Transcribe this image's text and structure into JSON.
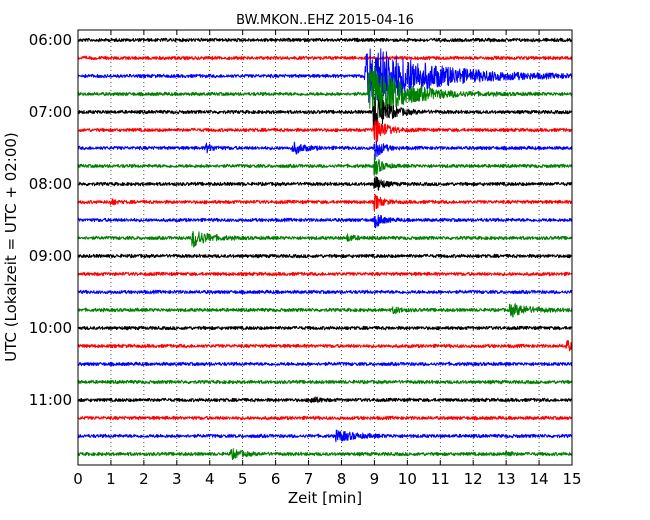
{
  "chart_data": {
    "type": "line",
    "title": "BW.MKON..EHZ 2015-04-16",
    "xlabel": "Zeit  [min]",
    "ylabel": "UTC (Lokalzeit = UTC + 02:00)",
    "xlim": [
      0,
      15
    ],
    "x_ticks": [
      "0",
      "1",
      "2",
      "3",
      "4",
      "5",
      "6",
      "7",
      "8",
      "9",
      "10",
      "11",
      "12",
      "13",
      "14",
      "15"
    ],
    "y_tick_labels": [
      "06:00",
      "07:00",
      "08:00",
      "09:00",
      "10:00",
      "11:00"
    ],
    "grid": "vertical dotted",
    "trace_colors": [
      "#000000",
      "#ff0000",
      "#0000ff",
      "#008000"
    ],
    "traces": [
      {
        "start": "06:00",
        "color": "#000000",
        "events": []
      },
      {
        "start": "06:15",
        "color": "#ff0000",
        "events": []
      },
      {
        "start": "06:30",
        "color": "#0000ff",
        "events": [
          {
            "t": 9.0,
            "amp": 30,
            "decay": 1.7,
            "onset": 8.7
          }
        ]
      },
      {
        "start": "06:45",
        "color": "#008000",
        "events": [
          {
            "t": 9.0,
            "amp": 28,
            "decay": 0.9,
            "onset": 8.8
          }
        ]
      },
      {
        "start": "07:00",
        "color": "#000000",
        "events": [
          {
            "t": 9.0,
            "amp": 20,
            "decay": 0.4,
            "onset": 8.95
          }
        ]
      },
      {
        "start": "07:15",
        "color": "#ff0000",
        "events": [
          {
            "t": 9.0,
            "amp": 14,
            "decay": 0.3,
            "onset": 8.95
          }
        ]
      },
      {
        "start": "07:30",
        "color": "#0000ff",
        "events": [
          {
            "t": 9.0,
            "amp": 12,
            "decay": 0.2,
            "onset": 8.98
          },
          {
            "t": 3.9,
            "amp": 4,
            "decay": 0.2,
            "onset": 3.85
          },
          {
            "t": 6.6,
            "amp": 5,
            "decay": 0.3,
            "onset": 6.5
          }
        ]
      },
      {
        "start": "07:45",
        "color": "#008000",
        "events": [
          {
            "t": 9.0,
            "amp": 10,
            "decay": 0.2,
            "onset": 8.98
          }
        ]
      },
      {
        "start": "08:00",
        "color": "#000000",
        "events": [
          {
            "t": 9.0,
            "amp": 10,
            "decay": 0.2,
            "onset": 8.98
          }
        ]
      },
      {
        "start": "08:15",
        "color": "#ff0000",
        "events": [
          {
            "t": 9.0,
            "amp": 8,
            "decay": 0.2,
            "onset": 8.98
          },
          {
            "t": 1.0,
            "amp": 4,
            "decay": 0.1,
            "onset": 0.98
          }
        ]
      },
      {
        "start": "08:30",
        "color": "#0000ff",
        "events": [
          {
            "t": 9.05,
            "amp": 7,
            "decay": 0.2,
            "onset": 9.0
          }
        ]
      },
      {
        "start": "08:45",
        "color": "#008000",
        "events": [
          {
            "t": 3.5,
            "amp": 9,
            "decay": 0.4,
            "onset": 3.45
          },
          {
            "t": 8.2,
            "amp": 3,
            "decay": 0.2,
            "onset": 8.15
          }
        ]
      },
      {
        "start": "09:00",
        "color": "#000000",
        "events": []
      },
      {
        "start": "09:15",
        "color": "#ff0000",
        "events": []
      },
      {
        "start": "09:30",
        "color": "#0000ff",
        "events": []
      },
      {
        "start": "09:45",
        "color": "#008000",
        "events": [
          {
            "t": 13.15,
            "amp": 6,
            "decay": 0.5,
            "onset": 13.1
          },
          {
            "t": 9.6,
            "amp": 3,
            "decay": 0.2,
            "onset": 9.55
          }
        ]
      },
      {
        "start": "10:00",
        "color": "#000000",
        "events": []
      },
      {
        "start": "10:15",
        "color": "#ff0000",
        "events": [
          {
            "t": 14.85,
            "amp": 5,
            "decay": 0.2,
            "onset": 14.8
          }
        ]
      },
      {
        "start": "10:30",
        "color": "#0000ff",
        "events": []
      },
      {
        "start": "10:45",
        "color": "#008000",
        "events": []
      },
      {
        "start": "11:00",
        "color": "#000000",
        "events": [
          {
            "t": 7.1,
            "amp": 3,
            "decay": 0.2,
            "onset": 7.05
          }
        ]
      },
      {
        "start": "11:15",
        "color": "#ff0000",
        "events": []
      },
      {
        "start": "11:30",
        "color": "#0000ff",
        "events": [
          {
            "t": 7.9,
            "amp": 5,
            "decay": 0.5,
            "onset": 7.8
          }
        ]
      },
      {
        "start": "11:45",
        "color": "#008000",
        "events": [
          {
            "t": 4.7,
            "amp": 4,
            "decay": 0.3,
            "onset": 4.6
          },
          {
            "t": 13.0,
            "amp": 4,
            "decay": 0.1,
            "onset": 12.98
          }
        ]
      }
    ]
  }
}
